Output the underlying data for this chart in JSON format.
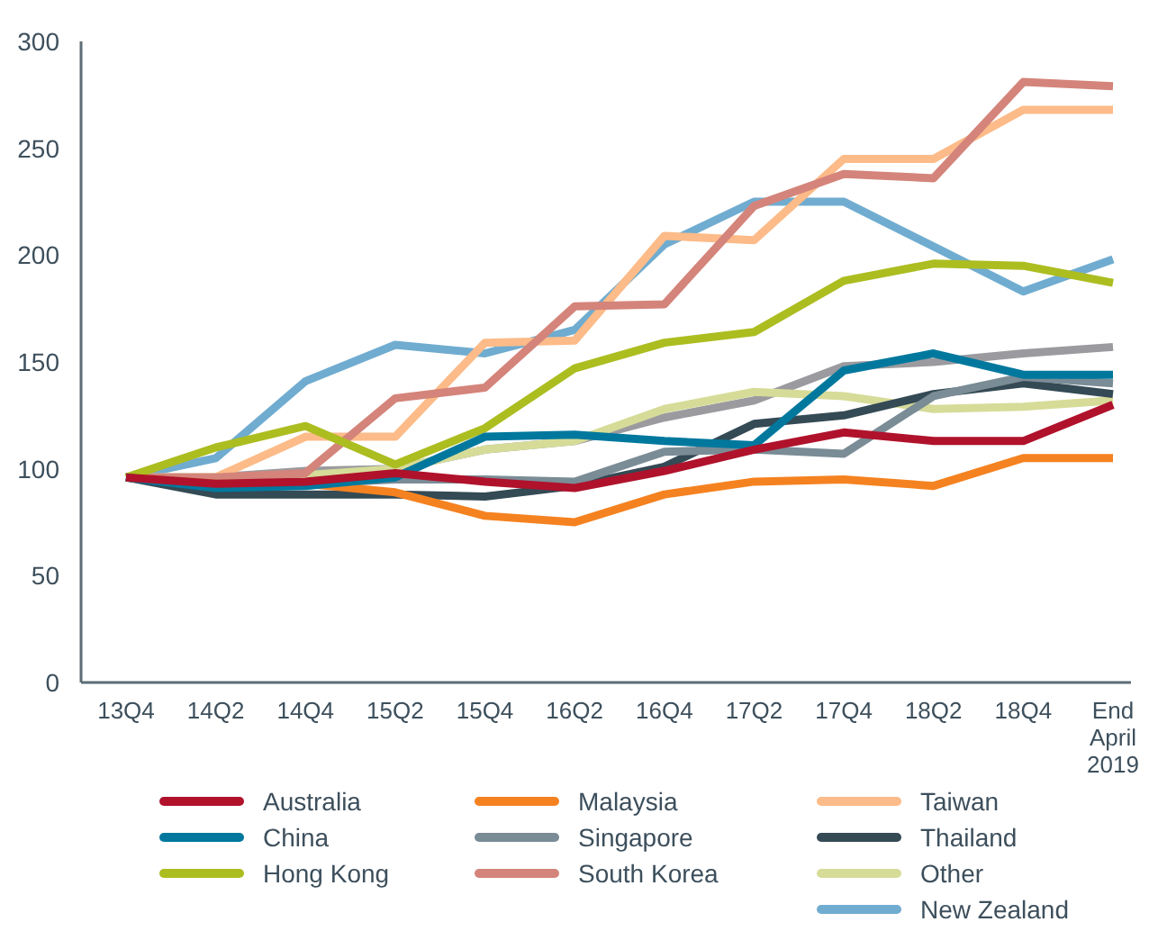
{
  "chart_data": {
    "type": "line",
    "categories": [
      "13Q4",
      "14Q2",
      "14Q4",
      "15Q2",
      "15Q4",
      "16Q2",
      "16Q4",
      "17Q2",
      "17Q4",
      "18Q2",
      "18Q4",
      "End April 2019"
    ],
    "ylim": [
      0,
      300
    ],
    "yticks": [
      0,
      50,
      100,
      150,
      200,
      250,
      300
    ],
    "grid": false,
    "legend": "bottom",
    "marker": "none",
    "line_style": "solid",
    "series": [
      {
        "name": "Australia",
        "color": "#b0122c",
        "values": [
          96,
          93,
          94,
          98,
          94,
          91,
          99,
          109,
          117,
          113,
          113,
          130
        ]
      },
      {
        "name": "China",
        "color": "#00789e",
        "values": [
          96,
          91,
          92,
          96,
          115,
          116,
          113,
          111,
          146,
          154,
          144,
          144
        ]
      },
      {
        "name": "Hong Kong",
        "color": "#acbd20",
        "values": [
          96,
          110,
          120,
          102,
          119,
          147,
          159,
          164,
          188,
          196,
          195,
          187
        ]
      },
      {
        "name": "Malaysia",
        "color": "#f58220",
        "values": [
          96,
          93,
          93,
          89,
          78,
          75,
          88,
          94,
          95,
          92,
          105,
          105
        ]
      },
      {
        "name": "Singapore",
        "color": "#7a8c96",
        "values": [
          96,
          93,
          93,
          95,
          95,
          94,
          108,
          109,
          107,
          134,
          143,
          140
        ]
      },
      {
        "name": "South Korea",
        "color": "#d4847a",
        "values": [
          96,
          96,
          98,
          133,
          138,
          176,
          177,
          223,
          238,
          236,
          281,
          279
        ]
      },
      {
        "name": "Taiwan",
        "color": "#fcbb88",
        "values": [
          96,
          96,
          115,
          115,
          159,
          160,
          209,
          207,
          245,
          245,
          268,
          268
        ]
      },
      {
        "name": "Thailand",
        "color": "#344a55",
        "values": [
          96,
          88,
          88,
          88,
          87,
          92,
          101,
          121,
          125,
          135,
          140,
          135
        ]
      },
      {
        "name": "Other",
        "color": "#d6dc98",
        "values": [
          96,
          96,
          97,
          100,
          109,
          113,
          128,
          136,
          134,
          128,
          129,
          132
        ]
      },
      {
        "name": "New Zealand",
        "color": "#70acd0",
        "values": [
          96,
          105,
          141,
          158,
          154,
          165,
          205,
          225,
          225,
          204,
          183,
          198
        ]
      },
      {
        "color": "#9b9b9f",
        "values": [
          96,
          96,
          99,
          100,
          109,
          113,
          124,
          132,
          148,
          150,
          154,
          157
        ]
      }
    ]
  }
}
